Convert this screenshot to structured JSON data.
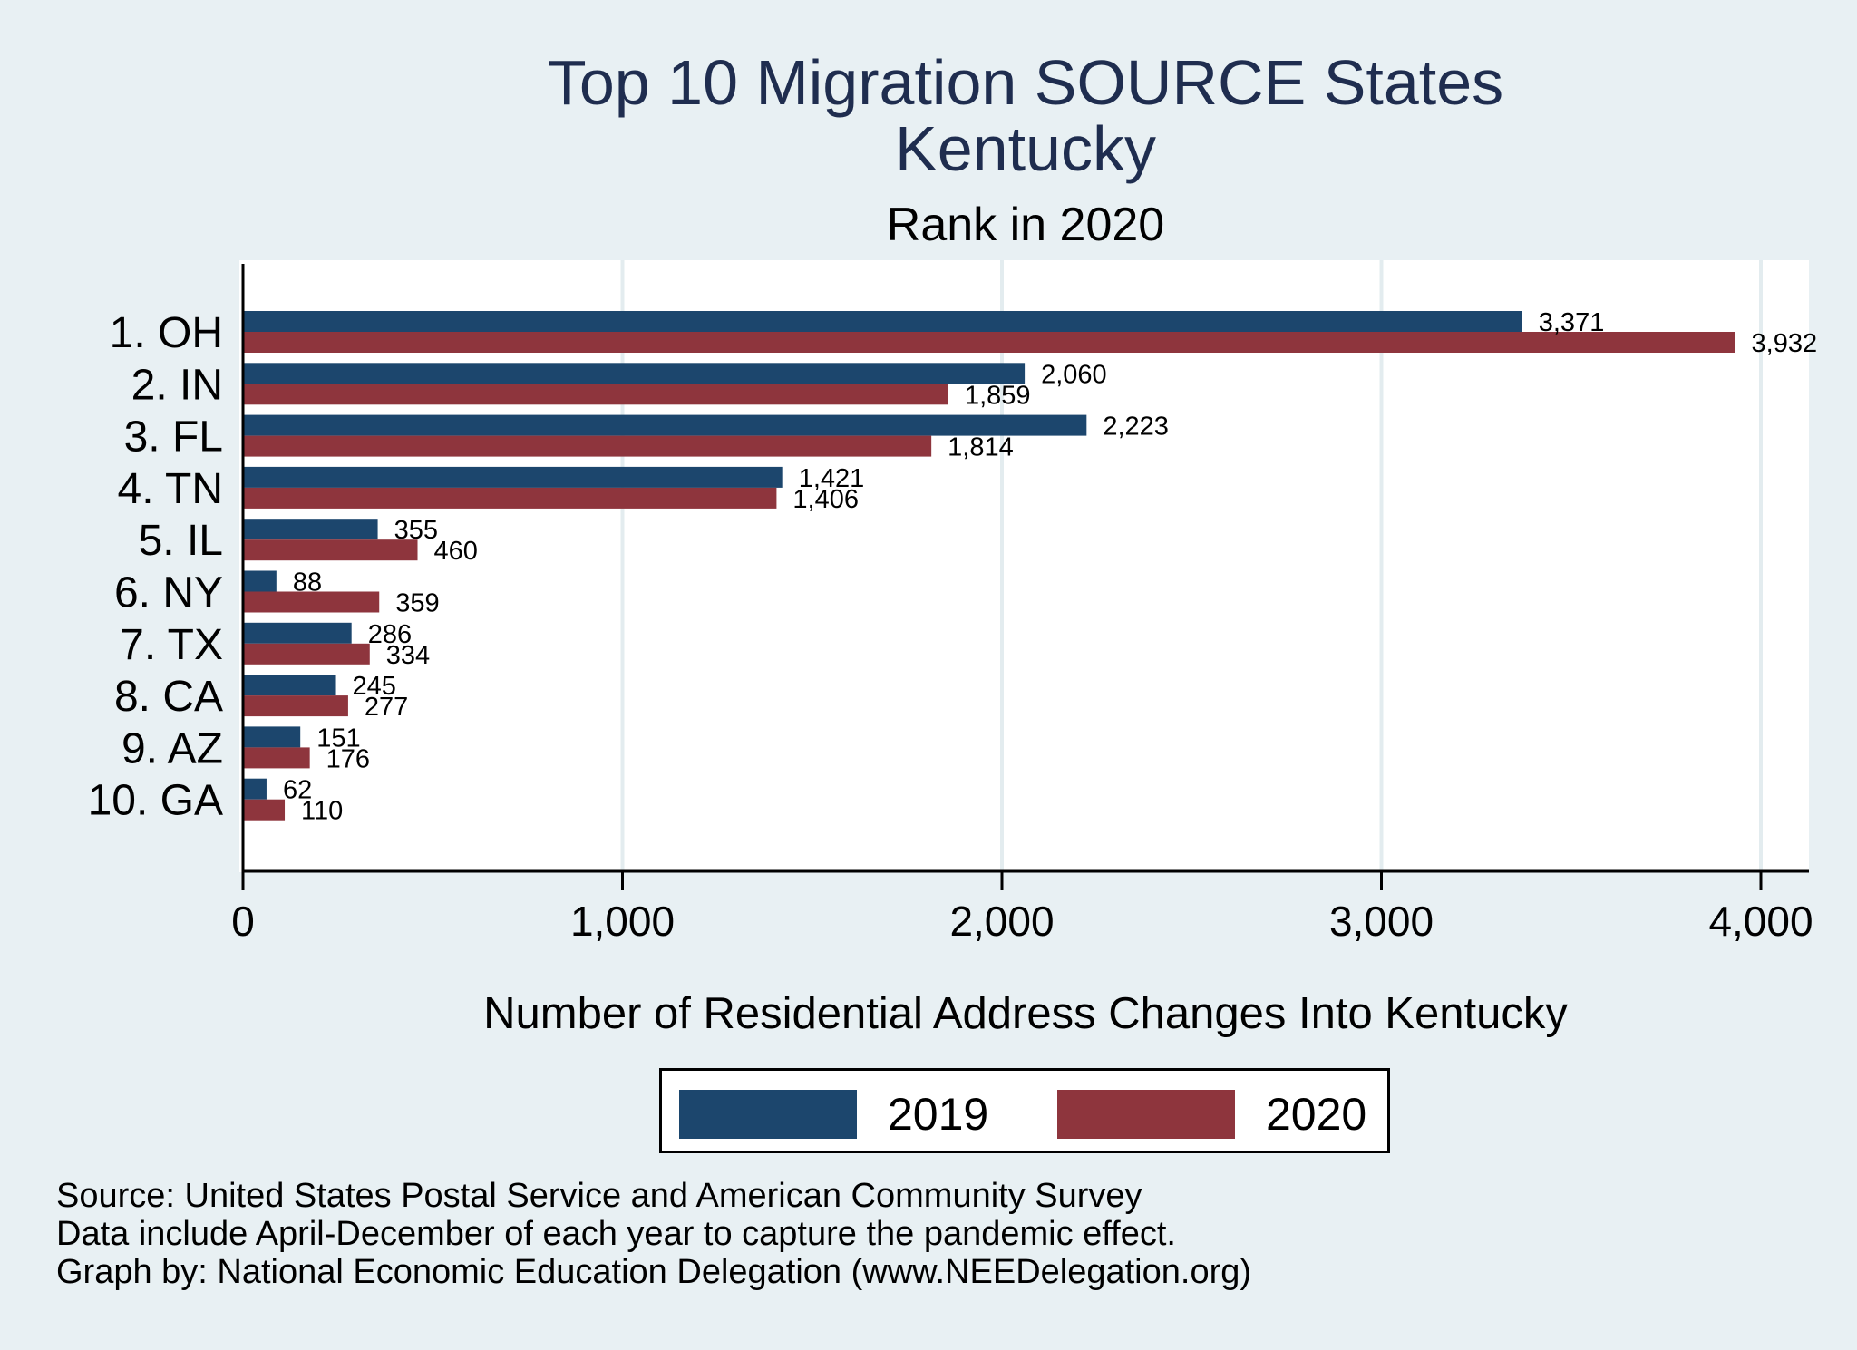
{
  "chart_data": {
    "type": "bar",
    "orientation": "horizontal",
    "title": "Top 10 Migration SOURCE States",
    "title_line2": "Kentucky",
    "subtitle": "Rank in 2020",
    "xlabel": "Number of Residential Address Changes Into Kentucky",
    "ylabel": "",
    "categories": [
      "1. OH",
      "2. IN",
      "3. FL",
      "4. TN",
      "5. IL",
      "6. NY",
      "7. TX",
      "8. CA",
      "9. AZ",
      "10. GA"
    ],
    "series": [
      {
        "name": "2019",
        "color": "#1c466d",
        "values": [
          3371,
          2060,
          2223,
          1421,
          355,
          88,
          286,
          245,
          151,
          62
        ]
      },
      {
        "name": "2020",
        "color": "#8e353d",
        "values": [
          3932,
          1859,
          1814,
          1406,
          460,
          359,
          334,
          277,
          176,
          110
        ]
      }
    ],
    "data_labels": {
      "2019": [
        "3,371",
        "2,060",
        "2,223",
        "1,421",
        "355",
        "88",
        "286",
        "245",
        "151",
        "62"
      ],
      "2020": [
        "3,932",
        "1,859",
        "1,814",
        "1,406",
        "460",
        "359",
        "334",
        "277",
        "176",
        "110"
      ]
    },
    "xlim": [
      0,
      4100
    ],
    "xticks": [
      0,
      1000,
      2000,
      3000,
      4000
    ],
    "xtick_labels": [
      "0",
      "1,000",
      "2,000",
      "3,000",
      "4,000"
    ],
    "grid": "vertical",
    "legend": {
      "placement": "bottom",
      "entries": [
        "2019",
        "2020"
      ]
    }
  },
  "notes": [
    "Source: United States Postal Service and American Community Survey",
    "Data include April-December of each year to capture the pandemic effect.",
    "Graph by: National Economic Education Delegation (www.NEEDelegation.org)"
  ],
  "colors": {
    "background": "#e8f0f3",
    "plot_background": "#ffffff",
    "title": "#1f2d4f",
    "series_2019": "#1c466d",
    "series_2020": "#8e353d",
    "gridline": "#e3ecef"
  }
}
